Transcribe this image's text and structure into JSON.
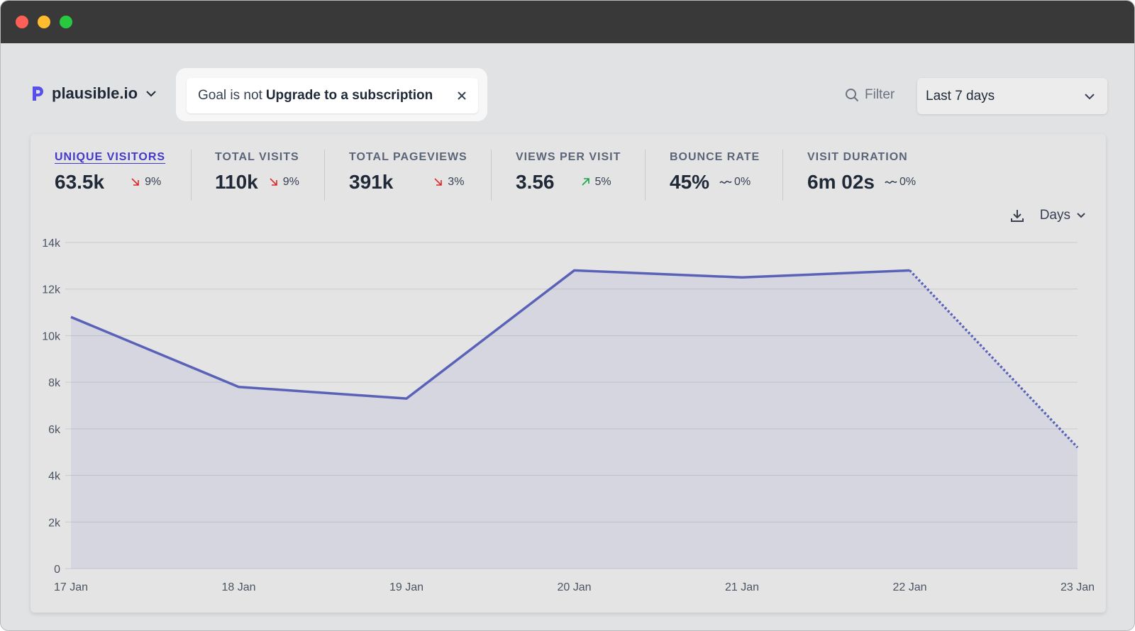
{
  "header": {
    "site": "plausible.io"
  },
  "filter": {
    "prefix": "Goal is not",
    "value": "Upgrade to a subscription"
  },
  "toolbar": {
    "filter_button": "Filter",
    "period": "Last 7 days"
  },
  "stats": [
    {
      "label": "UNIQUE VISITORS",
      "value": "63.5k",
      "change": "9%",
      "trend": "down"
    },
    {
      "label": "TOTAL VISITS",
      "value": "110k",
      "change": "9%",
      "trend": "down"
    },
    {
      "label": "TOTAL PAGEVIEWS",
      "value": "391k",
      "change": "3%",
      "trend": "down"
    },
    {
      "label": "VIEWS PER VISIT",
      "value": "3.56",
      "change": "5%",
      "trend": "up"
    },
    {
      "label": "BOUNCE RATE",
      "value": "45%",
      "change": "0%",
      "trend": "flat"
    },
    {
      "label": "VISIT DURATION",
      "value": "6m 02s",
      "change": "0%",
      "trend": "flat"
    }
  ],
  "interval": "Days",
  "chart_data": {
    "type": "line",
    "categories": [
      "17 Jan",
      "18 Jan",
      "19 Jan",
      "20 Jan",
      "21 Jan",
      "22 Jan",
      "23 Jan"
    ],
    "series": [
      {
        "name": "Unique visitors",
        "color": "#5a62b8",
        "values": [
          10800,
          7800,
          7300,
          12800,
          12500,
          12800,
          5200
        ]
      }
    ],
    "ylim": [
      0,
      14000
    ],
    "yticks": [
      0,
      {
        "value": 2000,
        "label": "2k"
      },
      {
        "value": 4000,
        "label": "4k"
      },
      {
        "value": 6000,
        "label": "6k"
      },
      {
        "value": 8000,
        "label": "8k"
      },
      {
        "value": 10000,
        "label": "10k"
      },
      {
        "value": 12000,
        "label": "12k"
      },
      {
        "value": 14000,
        "label": "14k"
      }
    ],
    "grid": true,
    "area_fill": true,
    "dashed_last_segment": true
  }
}
